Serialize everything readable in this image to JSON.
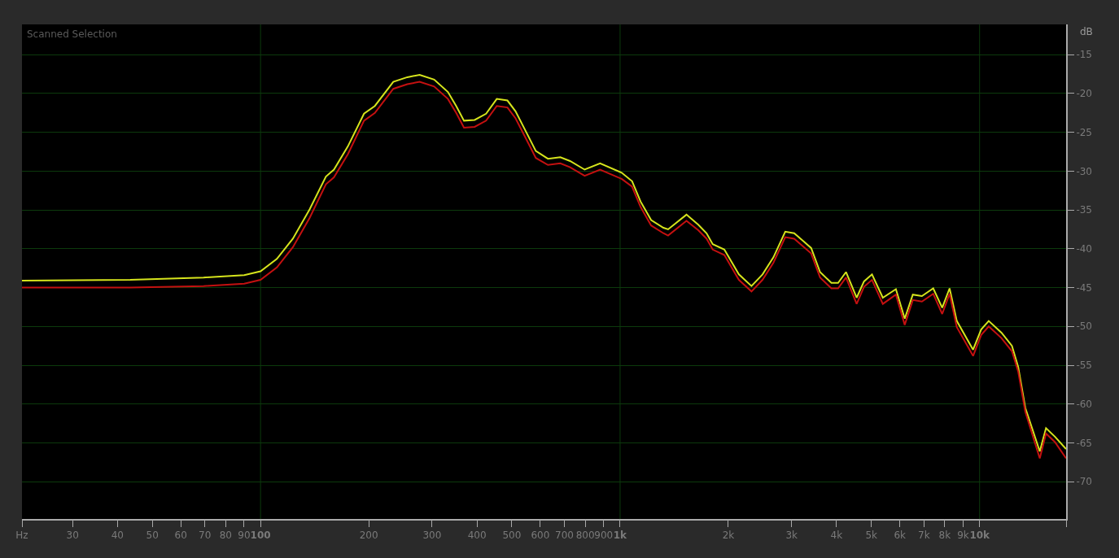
{
  "chart_data": {
    "type": "line",
    "title": "Scanned Selection",
    "ylabel": "dB",
    "log": "x",
    "grid": "y",
    "marker": "none",
    "line_style": "solid",
    "xlim": [
      21.7,
      17400
    ],
    "ylim": [
      -74.8,
      -11.1
    ],
    "xticks": [
      {
        "value": 21.7,
        "label": "Hz"
      },
      30,
      40,
      50,
      60,
      70,
      80,
      90,
      100,
      200,
      300,
      400,
      500,
      600,
      700,
      800,
      900,
      {
        "value": 1000,
        "label": "1k"
      },
      {
        "value": 2000,
        "label": "2k"
      },
      {
        "value": 3000,
        "label": "3k"
      },
      {
        "value": 4000,
        "label": "4k"
      },
      {
        "value": 5000,
        "label": "5k"
      },
      {
        "value": 6000,
        "label": "6k"
      },
      {
        "value": 7000,
        "label": "7k"
      },
      {
        "value": 8000,
        "label": "8k"
      },
      {
        "value": 9000,
        "label": "9k"
      },
      {
        "value": 10000,
        "label": "10k"
      },
      {
        "value": 17400,
        "label": null
      }
    ],
    "yticks": [
      -15,
      -20,
      -25,
      -30,
      -35,
      -40,
      -45,
      -50,
      -55,
      -60,
      -65,
      -70
    ],
    "ref_lines": [
      {
        "axis": "x",
        "value": 100,
        "color": "#0c3a0c"
      },
      {
        "axis": "x",
        "value": 1000,
        "color": "#0c3a0c"
      },
      {
        "axis": "x",
        "value": 10000,
        "color": "#0c3a0c"
      }
    ],
    "x": [
      21.7,
      43.4,
      69.4,
      90.1,
      100,
      111,
      123,
      137,
      152,
      160,
      175,
      194,
      208,
      234,
      256,
      277,
      304,
      332,
      350,
      368,
      394,
      424,
      454,
      486,
      512,
      550,
      583,
      630,
      682,
      726,
      797,
      880,
      1010,
      1080,
      1140,
      1220,
      1320,
      1360,
      1530,
      1650,
      1740,
      1810,
      1950,
      2140,
      2320,
      2490,
      2670,
      2880,
      3050,
      3230,
      3400,
      3600,
      3870,
      4040,
      4250,
      4550,
      4770,
      5020,
      5380,
      5850,
      6190,
      6520,
      6910,
      7430,
      7870,
      8250,
      8640,
      9590,
      10100,
      10600,
      11500,
      12300,
      12800,
      13400,
      14700,
      15300,
      16200,
      17400
    ],
    "series": [
      {
        "color": "#d6e41c",
        "values": [
          -44.1,
          -44.0,
          -43.7,
          -43.4,
          -42.9,
          -41.3,
          -38.7,
          -34.9,
          -30.7,
          -29.8,
          -26.8,
          -22.6,
          -21.6,
          -18.5,
          -17.9,
          -17.6,
          -18.2,
          -19.8,
          -21.6,
          -23.5,
          -23.4,
          -22.6,
          -20.7,
          -20.9,
          -22.3,
          -25.1,
          -27.4,
          -28.4,
          -28.2,
          -28.7,
          -29.8,
          -29.0,
          -30.2,
          -31.3,
          -33.9,
          -36.3,
          -37.3,
          -37.5,
          -35.6,
          -36.9,
          -38.0,
          -39.4,
          -40.1,
          -43.3,
          -44.8,
          -43.3,
          -41.1,
          -37.8,
          -38.0,
          -39.0,
          -39.9,
          -43.0,
          -44.4,
          -44.4,
          -43.0,
          -46.3,
          -44.2,
          -43.3,
          -46.3,
          -45.2,
          -49.0,
          -45.9,
          -46.1,
          -45.1,
          -47.6,
          -45.1,
          -49.3,
          -53.0,
          -50.4,
          -49.3,
          -50.8,
          -52.5,
          -55.2,
          -60.5,
          -66.1,
          -63.1,
          -64.2,
          -65.8
        ]
      },
      {
        "color": "#c41010",
        "values": [
          -45.0,
          -45.0,
          -44.8,
          -44.5,
          -44.0,
          -42.4,
          -39.8,
          -36.0,
          -31.7,
          -30.8,
          -27.8,
          -23.5,
          -22.5,
          -19.4,
          -18.8,
          -18.5,
          -19.1,
          -20.7,
          -22.5,
          -24.4,
          -24.3,
          -23.5,
          -21.6,
          -21.8,
          -23.2,
          -26.0,
          -28.3,
          -29.2,
          -29.0,
          -29.5,
          -30.6,
          -29.8,
          -31.0,
          -32.0,
          -34.6,
          -37.0,
          -38.0,
          -38.3,
          -36.4,
          -37.6,
          -38.7,
          -40.1,
          -40.8,
          -44.0,
          -45.5,
          -44.0,
          -41.8,
          -38.5,
          -38.7,
          -39.7,
          -40.6,
          -43.7,
          -45.1,
          -45.1,
          -43.7,
          -47.1,
          -44.9,
          -44.0,
          -47.1,
          -45.9,
          -49.8,
          -46.6,
          -46.8,
          -45.8,
          -48.4,
          -45.8,
          -50.1,
          -53.8,
          -51.1,
          -50.0,
          -51.5,
          -53.2,
          -55.8,
          -61.0,
          -67.0,
          -63.8,
          -64.9,
          -67.0
        ]
      }
    ]
  }
}
